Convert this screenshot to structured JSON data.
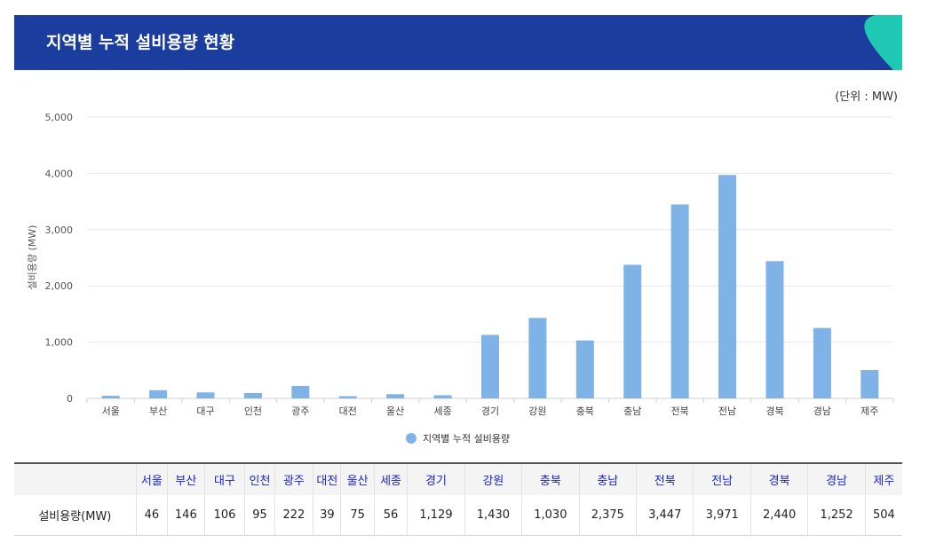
{
  "header": {
    "title": "지역별 누적 설비용량 현황"
  },
  "unit_label": "(단위 : MW)",
  "colors": {
    "header_bg": "#1a3d9e",
    "header_accent": "#20c9b4",
    "bar": "#7fb3e8",
    "table_header_text": "#1a24cc"
  },
  "chart_data": {
    "type": "bar",
    "categories": [
      "서울",
      "부산",
      "대구",
      "인천",
      "광주",
      "대전",
      "울산",
      "세종",
      "경기",
      "강원",
      "충북",
      "충남",
      "전북",
      "전남",
      "경북",
      "경남",
      "제주"
    ],
    "series": [
      {
        "name": "지역별 누적 설비용량",
        "values": [
          46,
          146,
          106,
          95,
          222,
          39,
          75,
          56,
          1129,
          1430,
          1030,
          2375,
          3447,
          3971,
          2440,
          1252,
          504
        ]
      }
    ],
    "ylabel": "설비용량 (MW)",
    "ylim": [
      0,
      5000
    ],
    "yticks": [
      "0",
      "1,000",
      "2,000",
      "3,000",
      "4,000",
      "5,000"
    ],
    "grid": true,
    "legend_position": "bottom"
  },
  "table": {
    "row_label": "설비용량(MW)",
    "headers": [
      "서울",
      "부산",
      "대구",
      "인천",
      "광주",
      "대전",
      "울산",
      "세종",
      "경기",
      "강원",
      "충북",
      "충남",
      "전북",
      "전남",
      "경북",
      "경남",
      "제주"
    ],
    "values": [
      "46",
      "146",
      "106",
      "95",
      "222",
      "39",
      "75",
      "56",
      "1,129",
      "1,430",
      "1,030",
      "2,375",
      "3,447",
      "3,971",
      "2,440",
      "1,252",
      "504"
    ]
  }
}
